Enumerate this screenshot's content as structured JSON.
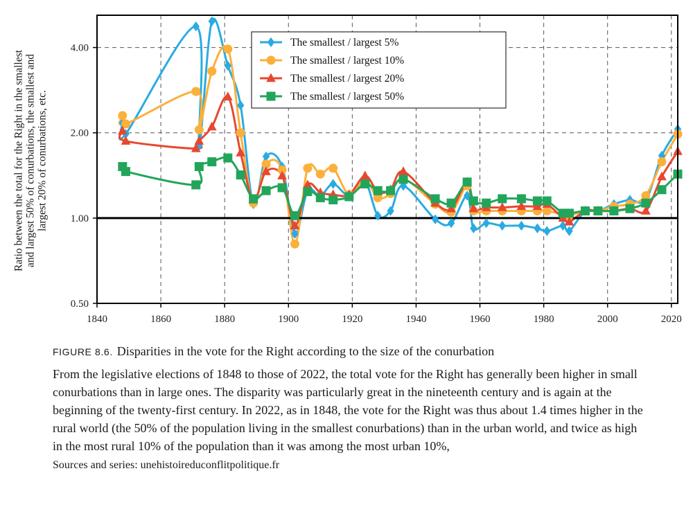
{
  "chart_data": {
    "type": "line",
    "title": "",
    "xlabel": "",
    "ylabel_lines": [
      "Ratio between the total for the Right in the smallest",
      "and largest 50% of conurbations, the smallest and",
      "largest 20% of conurbations, etc."
    ],
    "xlim": [
      1840,
      2022
    ],
    "ylim": [
      0.5,
      5.2
    ],
    "y_scale": "log",
    "x_ticks": [
      1840,
      1860,
      1880,
      1900,
      1920,
      1940,
      1960,
      1980,
      2000,
      2020
    ],
    "y_ticks": [
      0.5,
      1.0,
      2.0,
      4.0
    ],
    "y_tick_labels": [
      "0.50",
      "1.00",
      "2.00",
      "4.00"
    ],
    "grid": true,
    "reference_line": 1.0,
    "legend_position": "top-center",
    "series": [
      {
        "name": "The smallest / largest 5%",
        "color": "#29abe2",
        "marker": "diamond",
        "x": [
          1848,
          1849,
          1871,
          1872,
          1876,
          1881,
          1885,
          1889,
          1893,
          1898,
          1902,
          1906,
          1910,
          1914,
          1919,
          1924,
          1928,
          1932,
          1936,
          1946,
          1951,
          1956,
          1958,
          1962,
          1967,
          1973,
          1978,
          1981,
          1986,
          1988,
          1993,
          1997,
          2002,
          2007,
          2012,
          2017,
          2022
        ],
        "y": [
          2.17,
          1.98,
          4.75,
          1.8,
          4.95,
          3.45,
          2.5,
          1.12,
          1.65,
          1.52,
          0.88,
          1.25,
          1.2,
          1.32,
          1.2,
          1.34,
          1.02,
          1.06,
          1.3,
          0.99,
          0.96,
          1.2,
          0.92,
          0.96,
          0.94,
          0.94,
          0.92,
          0.9,
          0.94,
          0.9,
          1.06,
          1.06,
          1.12,
          1.16,
          1.16,
          1.66,
          2.06
        ]
      },
      {
        "name": "The smallest / largest 10%",
        "color": "#fbb03b",
        "marker": "circle",
        "x": [
          1848,
          1849,
          1871,
          1872,
          1876,
          1881,
          1885,
          1889,
          1893,
          1898,
          1902,
          1906,
          1910,
          1914,
          1919,
          1924,
          1928,
          1932,
          1936,
          1946,
          1951,
          1956,
          1958,
          1962,
          1967,
          1973,
          1978,
          1981,
          1986,
          1988,
          1993,
          1997,
          2002,
          2007,
          2012,
          2017,
          2022
        ],
        "y": [
          2.3,
          2.15,
          2.8,
          2.05,
          3.3,
          3.95,
          2.0,
          1.13,
          1.55,
          1.48,
          0.81,
          1.5,
          1.43,
          1.5,
          1.21,
          1.36,
          1.18,
          1.22,
          1.38,
          1.12,
          1.05,
          1.3,
          1.06,
          1.06,
          1.06,
          1.06,
          1.06,
          1.06,
          1.03,
          1.02,
          1.06,
          1.06,
          1.1,
          1.12,
          1.2,
          1.58,
          1.98
        ]
      },
      {
        "name": "The smallest / largest 20%",
        "color": "#e8472f",
        "marker": "triangle",
        "x": [
          1848,
          1849,
          1871,
          1872,
          1876,
          1881,
          1885,
          1889,
          1893,
          1898,
          1902,
          1906,
          1910,
          1914,
          1919,
          1924,
          1928,
          1932,
          1936,
          1946,
          1951,
          1956,
          1958,
          1962,
          1967,
          1973,
          1978,
          1981,
          1986,
          1988,
          1993,
          1997,
          2002,
          2007,
          2012,
          2017,
          2022
        ],
        "y": [
          2.03,
          1.87,
          1.76,
          1.87,
          2.1,
          2.68,
          1.7,
          1.16,
          1.46,
          1.41,
          0.94,
          1.31,
          1.23,
          1.21,
          1.21,
          1.41,
          1.24,
          1.26,
          1.46,
          1.13,
          1.08,
          1.34,
          1.08,
          1.09,
          1.09,
          1.1,
          1.1,
          1.12,
          1.0,
          0.97,
          1.06,
          1.06,
          1.06,
          1.08,
          1.06,
          1.4,
          1.72
        ]
      },
      {
        "name": "The smallest / largest 50%",
        "color": "#22a55a",
        "marker": "square",
        "x": [
          1848,
          1849,
          1871,
          1872,
          1876,
          1881,
          1885,
          1889,
          1893,
          1898,
          1902,
          1906,
          1910,
          1914,
          1919,
          1924,
          1928,
          1932,
          1936,
          1946,
          1951,
          1956,
          1958,
          1962,
          1967,
          1973,
          1978,
          1981,
          1986,
          1988,
          1993,
          1997,
          2002,
          2007,
          2012,
          2017,
          2022
        ],
        "y": [
          1.52,
          1.46,
          1.31,
          1.52,
          1.58,
          1.63,
          1.42,
          1.17,
          1.25,
          1.28,
          1.02,
          1.24,
          1.18,
          1.16,
          1.19,
          1.32,
          1.25,
          1.25,
          1.37,
          1.17,
          1.13,
          1.34,
          1.15,
          1.13,
          1.17,
          1.17,
          1.15,
          1.15,
          1.04,
          1.04,
          1.06,
          1.06,
          1.06,
          1.08,
          1.13,
          1.26,
          1.43
        ]
      }
    ]
  },
  "caption": {
    "label": "FIGURE 8.6.",
    "title": "Disparities in the vote for the Right according to the size of the conurbation",
    "description": "From the legislative elections of 1848 to those of 2022, the total vote for the Right has generally been higher in small conurbations than in large ones. The disparity was particularly great in the nineteenth century and is again at the beginning of the twenty-first century. In 2022, as in 1848, the vote for the Right was thus about 1.4 times higher in the rural world (the 50% of the population living in the smallest conurbations) than in the urban world, and twice as high in the most rural 10% of the population than it was among the most urban 10%,",
    "source": "Sources and series: unehistoireduconflitpolitique.fr"
  }
}
